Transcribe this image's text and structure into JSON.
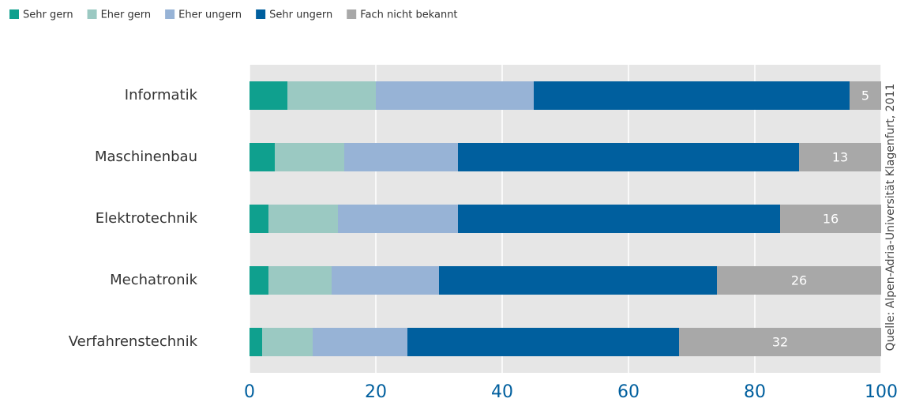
{
  "chart_data": {
    "type": "stacked_bar_horizontal",
    "categories": [
      "Informatik",
      "Maschinenbau",
      "Elektrotechnik",
      "Mechatronik",
      "Verfahrenstechnik"
    ],
    "series": [
      {
        "name": "Sehr gern",
        "color": "#0fa08e",
        "values": [
          6,
          4,
          3,
          3,
          2
        ]
      },
      {
        "name": "Eher gern",
        "color": "#9bc9c2",
        "values": [
          14,
          11,
          11,
          10,
          8
        ]
      },
      {
        "name": "Eher ungern",
        "color": "#97b3d6",
        "values": [
          25,
          18,
          19,
          17,
          15
        ]
      },
      {
        "name": "Sehr ungern",
        "color": "#005f9e",
        "values": [
          50,
          54,
          51,
          44,
          43
        ]
      },
      {
        "name": "Fach nicht bekannt",
        "color": "#a8a8a8",
        "values": [
          5,
          13,
          16,
          26,
          32
        ],
        "data_labels": true
      }
    ],
    "xlim": [
      0,
      100
    ],
    "xticks": [
      0,
      20,
      40,
      60,
      80,
      100
    ],
    "grid": true,
    "legend": "top-left",
    "source": "Quelle: Alpen-Adria-Universität Klagenfurt, 2011"
  }
}
